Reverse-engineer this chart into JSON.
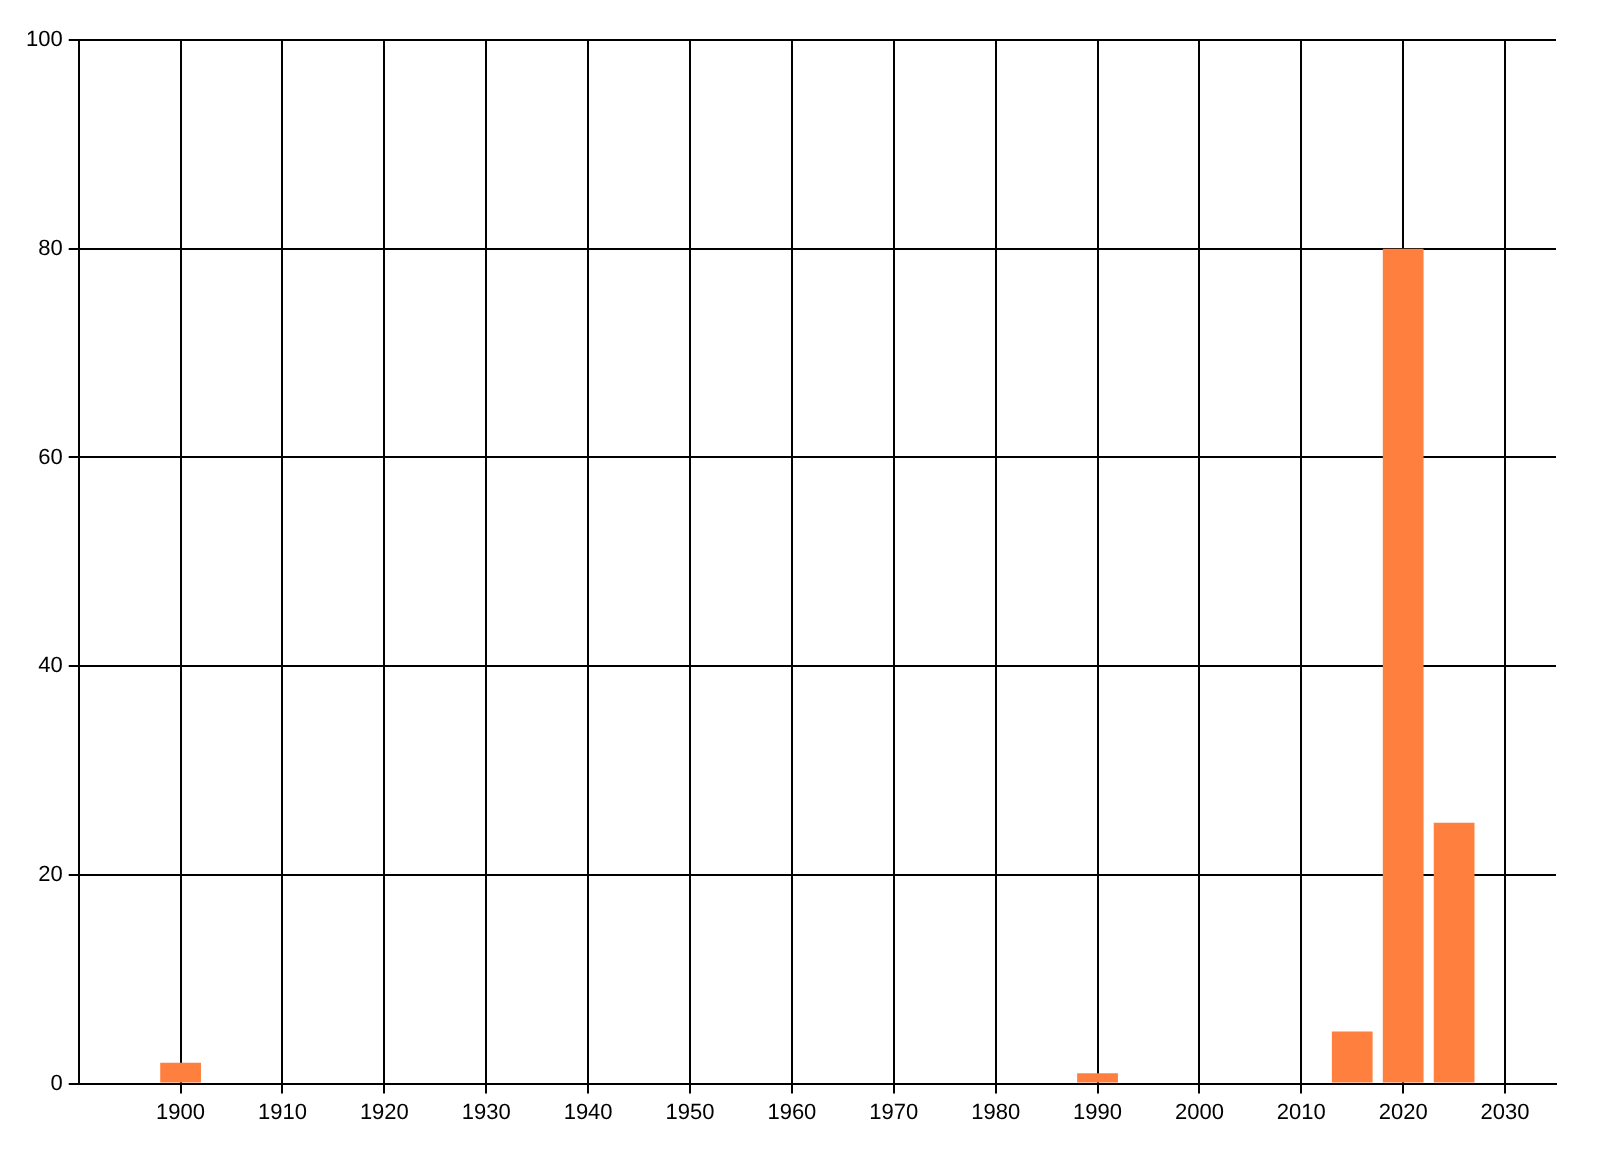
{
  "chart_data": {
    "type": "bar",
    "x": [
      1900,
      1990,
      2015,
      2020,
      2025
    ],
    "values": [
      2,
      1,
      5,
      80,
      25
    ],
    "color": "#ff7f3f",
    "xlim": [
      1890,
      2035
    ],
    "xticks": [
      1900,
      1910,
      1920,
      1930,
      1940,
      1950,
      1960,
      1970,
      1980,
      1990,
      2000,
      2010,
      2020,
      2030
    ],
    "ylim": [
      0,
      100
    ],
    "yticks": [
      0,
      20,
      40,
      60,
      80,
      100
    ],
    "grid": true,
    "legend": false
  }
}
